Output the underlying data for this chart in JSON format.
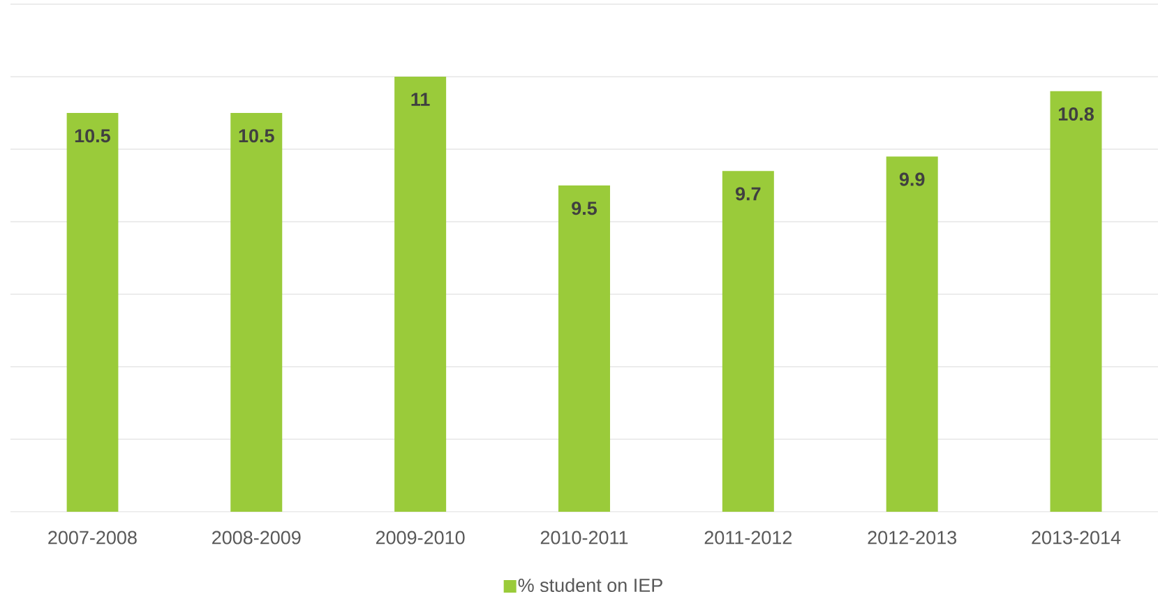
{
  "chart_data": {
    "type": "bar",
    "categories": [
      "2007-2008",
      "2008-2009",
      "2009-2010",
      "2010-2011",
      "2011-2012",
      "2012-2013",
      "2013-2014"
    ],
    "series": [
      {
        "name": "% student on IEP",
        "color": "#9acb3a",
        "values": [
          10.5,
          10.5,
          11,
          9.5,
          9.7,
          9.9,
          10.8
        ]
      }
    ],
    "ylim": [
      5,
      12
    ],
    "yticks": [
      {
        "value": 5,
        "label": null
      },
      {
        "value": 6,
        "label": null
      },
      {
        "value": 7,
        "label": null
      },
      {
        "value": 8,
        "label": null
      },
      {
        "value": 9,
        "label": null
      },
      {
        "value": 10,
        "label": null
      },
      {
        "value": 11,
        "label": null
      },
      {
        "value": 12,
        "label": null
      }
    ],
    "tick_labels": "x",
    "grid": "y",
    "legend": "bottom",
    "data_labels": true
  }
}
